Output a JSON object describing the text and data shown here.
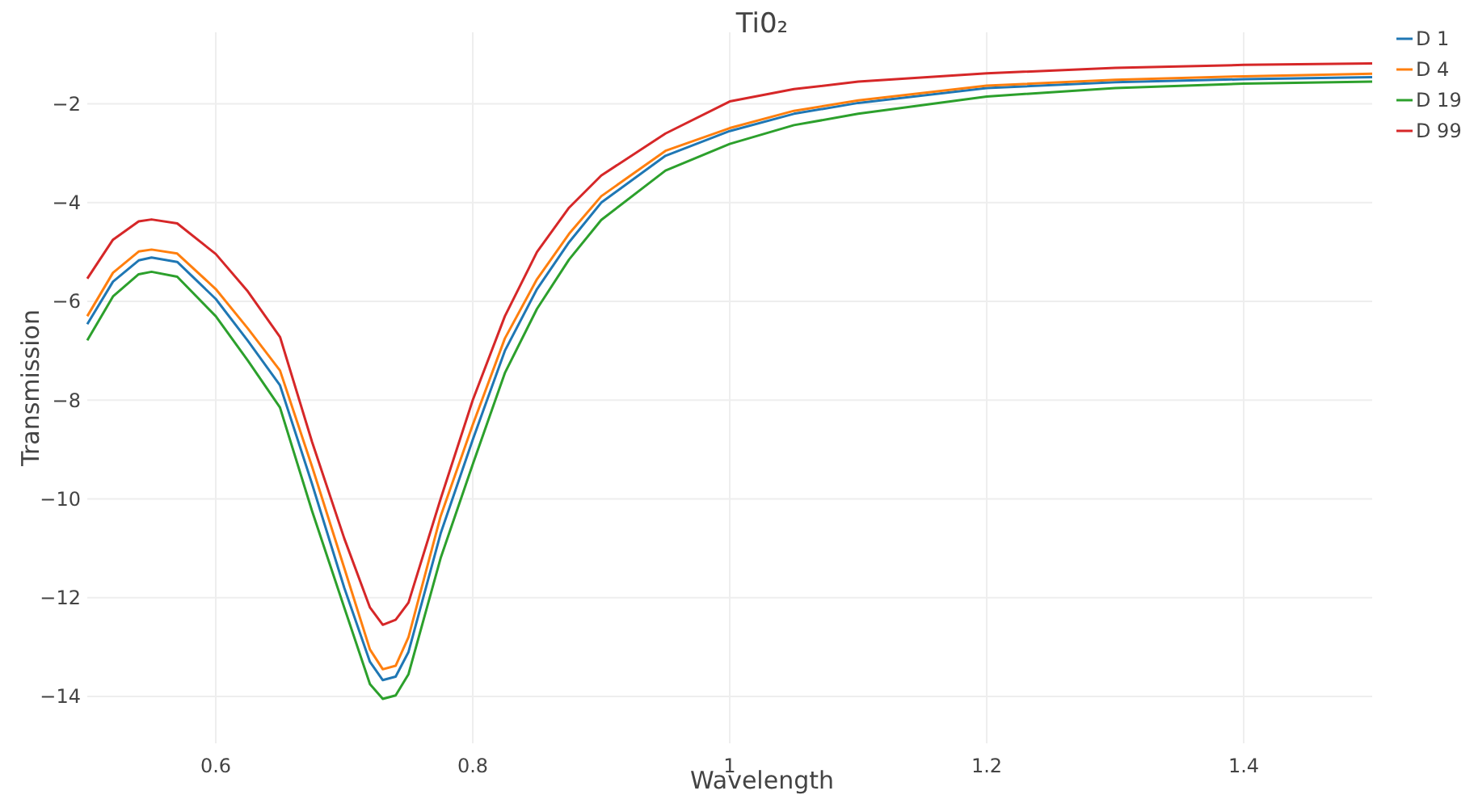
{
  "chart_data": {
    "type": "line",
    "title": "Ti0₂",
    "xlabel": "Wavelength",
    "ylabel": "Transmission",
    "x": [
      0.5,
      0.52,
      0.54,
      0.55,
      0.57,
      0.6,
      0.625,
      0.65,
      0.675,
      0.7,
      0.72,
      0.73,
      0.74,
      0.75,
      0.775,
      0.8,
      0.825,
      0.85,
      0.875,
      0.9,
      0.95,
      1.0,
      1.05,
      1.1,
      1.2,
      1.3,
      1.4,
      1.5
    ],
    "series": [
      {
        "name": "D 1",
        "color": "#1f77b4",
        "values": [
          -6.46,
          -5.6,
          -5.17,
          -5.11,
          -5.2,
          -5.95,
          -6.8,
          -7.7,
          -9.7,
          -11.8,
          -13.3,
          -13.67,
          -13.6,
          -13.1,
          -10.7,
          -8.8,
          -7.0,
          -5.75,
          -4.8,
          -4.0,
          -3.05,
          -2.55,
          -2.2,
          -1.98,
          -1.68,
          -1.56,
          -1.5,
          -1.46
        ]
      },
      {
        "name": "D 4",
        "color": "#ff7f0e",
        "values": [
          -6.3,
          -5.42,
          -4.99,
          -4.95,
          -5.03,
          -5.75,
          -6.55,
          -7.4,
          -9.35,
          -11.4,
          -13.05,
          -13.45,
          -13.38,
          -12.8,
          -10.35,
          -8.5,
          -6.75,
          -5.55,
          -4.63,
          -3.87,
          -2.95,
          -2.49,
          -2.14,
          -1.93,
          -1.63,
          -1.51,
          -1.44,
          -1.39
        ]
      },
      {
        "name": "D 19",
        "color": "#2ca02c",
        "values": [
          -6.79,
          -5.9,
          -5.45,
          -5.4,
          -5.5,
          -6.3,
          -7.2,
          -8.15,
          -10.25,
          -12.2,
          -13.75,
          -14.05,
          -13.98,
          -13.55,
          -11.2,
          -9.3,
          -7.45,
          -6.15,
          -5.15,
          -4.35,
          -3.35,
          -2.81,
          -2.43,
          -2.2,
          -1.85,
          -1.68,
          -1.59,
          -1.55
        ]
      },
      {
        "name": "D 99",
        "color": "#d62728",
        "values": [
          -5.54,
          -4.75,
          -4.38,
          -4.34,
          -4.42,
          -5.04,
          -5.8,
          -6.72,
          -8.85,
          -10.8,
          -12.2,
          -12.55,
          -12.45,
          -12.1,
          -10.0,
          -8.0,
          -6.3,
          -5.0,
          -4.1,
          -3.45,
          -2.6,
          -1.95,
          -1.7,
          -1.55,
          -1.38,
          -1.27,
          -1.21,
          -1.18
        ]
      }
    ],
    "xlim": [
      0.5,
      1.5
    ],
    "xticks": [
      0.6,
      0.8,
      1,
      1.2,
      1.4
    ],
    "ylim": [
      -14.95,
      -0.55
    ],
    "yticks": [
      {
        "value": -14,
        "label": "−14"
      },
      {
        "value": -12,
        "label": "−12"
      },
      {
        "value": -10,
        "label": "−10"
      },
      {
        "value": -8,
        "label": "−8"
      },
      {
        "value": -6,
        "label": "−6"
      },
      {
        "value": -4,
        "label": "−4"
      },
      {
        "value": -2,
        "label": "−2"
      }
    ],
    "grid": true,
    "legend": "top right",
    "marker": "none",
    "line_style": "solid"
  }
}
